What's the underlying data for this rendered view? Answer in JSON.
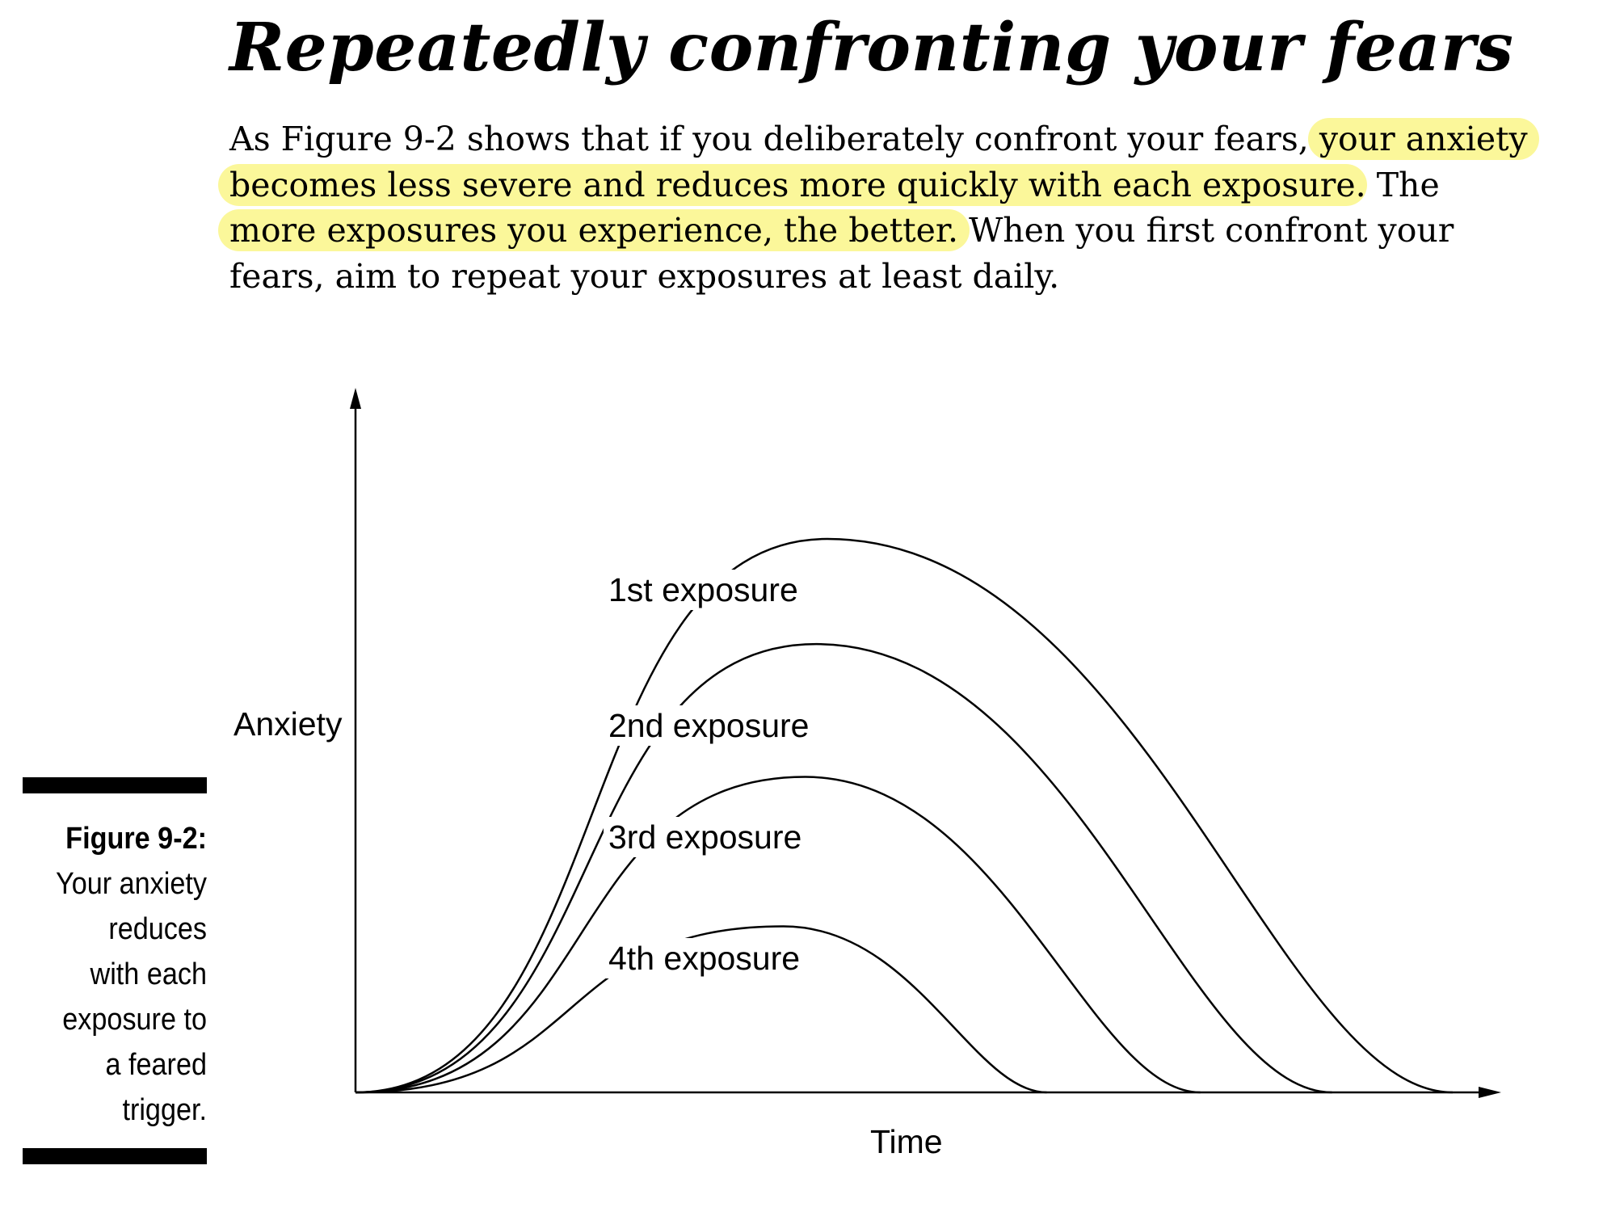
{
  "heading": "Repeatedly confronting your fears",
  "paragraph": {
    "part1": "As Figure 9-2 shows that if you deliberately confront your fears,",
    "line1_highlight": "your anxiety",
    "line2_highlight": "becomes less severe and reduces more quickly with each exposure",
    "part2": ". The",
    "line3_highlight": "more exposures you experience, the better.",
    "part3": " When you first confront your",
    "part4": "fears, aim to repeat your exposures at least daily."
  },
  "caption": {
    "label": "Figure 9-2:",
    "lines": [
      "Your anxiety",
      "reduces",
      "with each",
      "exposure to",
      "a feared",
      "trigger."
    ]
  },
  "highlight_color": "#fbf79a",
  "chart_data": {
    "type": "line",
    "xlabel": "Time",
    "ylabel": "Anxiety",
    "grid": false,
    "legend": "none",
    "series": [
      {
        "name": "1st exposure",
        "x": [
          0,
          0.43,
          1.0
        ],
        "y": [
          0,
          1.0,
          0
        ]
      },
      {
        "name": "2nd exposure",
        "x": [
          0,
          0.42,
          0.89
        ],
        "y": [
          0,
          0.81,
          0
        ]
      },
      {
        "name": "3rd exposure",
        "x": [
          0,
          0.41,
          0.77
        ],
        "y": [
          0,
          0.57,
          0
        ]
      },
      {
        "name": "4th exposure",
        "x": [
          0,
          0.39,
          0.63
        ],
        "y": [
          0,
          0.3,
          0
        ]
      }
    ]
  }
}
